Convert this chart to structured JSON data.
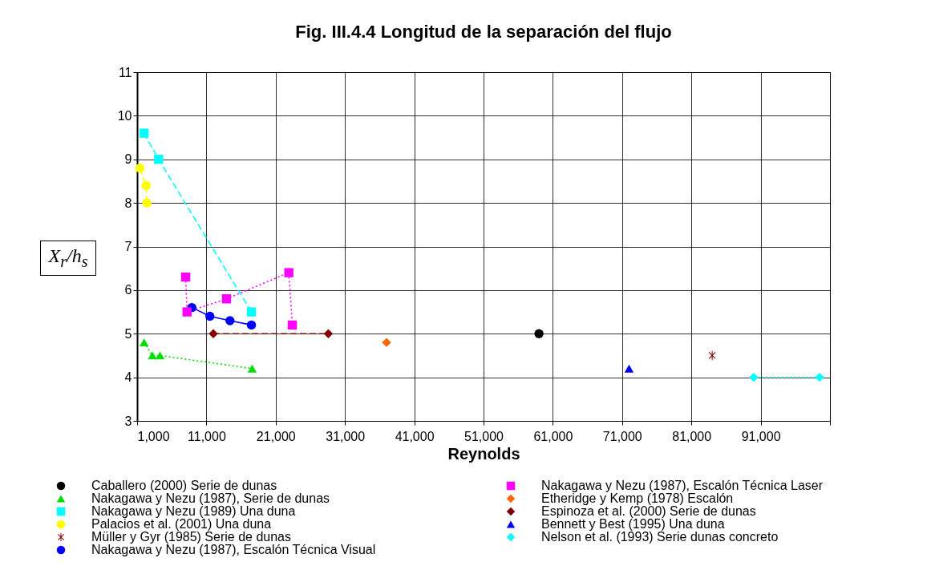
{
  "chart_data": {
    "type": "line",
    "title": "Fig. III.4.4 Longitud de la separación del flujo",
    "xlabel": "Reynolds",
    "ylabel": "X$_{r}$/h$_{s}$",
    "xlim": [
      1000,
      101000
    ],
    "xticks": [
      {
        "value": 1000,
        "label": "1,000"
      },
      {
        "value": 11000,
        "label": "11,000"
      },
      {
        "value": 21000,
        "label": "21,000"
      },
      {
        "value": 31000,
        "label": "31,000"
      },
      {
        "value": 41000,
        "label": "41,000"
      },
      {
        "value": 51000,
        "label": "51,000"
      },
      {
        "value": 61000,
        "label": "61,000"
      },
      {
        "value": 71000,
        "label": "71,000"
      },
      {
        "value": 81000,
        "label": "81,000"
      },
      {
        "value": 91000,
        "label": "91,000"
      },
      {
        "value": 101000,
        "label": null
      }
    ],
    "ylim": [
      3,
      11
    ],
    "yticks": [
      3,
      4,
      5,
      6,
      7,
      8,
      9,
      10,
      11
    ],
    "grid": true,
    "legend": "bottom",
    "series": [
      {
        "name": "Caballero (2000) Serie de dunas",
        "type": "scatter",
        "marker": "circle",
        "color": "#000000",
        "x": [
          59000
        ],
        "values": [
          5.0
        ]
      },
      {
        "name": "Nakagawa y Nezu (1987), Serie de dunas",
        "line_style": "dotted",
        "marker": "triangle",
        "color": "#00dd00",
        "x": [
          2000,
          3200,
          4300,
          17600
        ],
        "values": [
          4.8,
          4.5,
          4.5,
          4.2
        ]
      },
      {
        "name": "Nakagawa y Nezu (1989) Una duna",
        "line_style": "dashed",
        "marker": "square",
        "color": "#00ffff",
        "x": [
          2000,
          4100,
          17500
        ],
        "values": [
          9.6,
          9.0,
          5.5
        ]
      },
      {
        "name": "Palacios et al. (2001) Una duna",
        "line_style": "dashed",
        "marker": "circle",
        "color": "#ffff00",
        "x": [
          1400,
          2300,
          2400
        ],
        "values": [
          8.8,
          8.4,
          8.0
        ]
      },
      {
        "name": "Müller y Gyr (1985) Serie de dunas",
        "type": "scatter",
        "marker": "cross",
        "color": "#800000",
        "x": [
          84000
        ],
        "values": [
          4.5
        ]
      },
      {
        "name": "Nakagawa y Nezu (1987), Escalón Técnica Visual",
        "line_style": "solid",
        "marker": "circle",
        "color": "#0000ff",
        "x": [
          8900,
          11500,
          14400,
          17500
        ],
        "values": [
          5.6,
          5.4,
          5.3,
          5.2
        ]
      },
      {
        "name": "Nakagawa y Nezu (1987), Escalón Técnica Laser",
        "line_style": "dotted",
        "marker": "square",
        "color": "#ff00ff",
        "x": [
          8000,
          8200,
          13900,
          22900,
          23400
        ],
        "values": [
          6.3,
          5.5,
          5.8,
          6.4,
          5.2
        ]
      },
      {
        "name": "Etheridge y Kemp (1978) Escalón",
        "type": "scatter",
        "marker": "diamond",
        "color": "#ff6600",
        "x": [
          37000
        ],
        "values": [
          4.8
        ]
      },
      {
        "name": "Espinoza et al. (2000) Serie de dunas",
        "line_style": "dashed",
        "marker": "diamond",
        "color": "#800000",
        "x": [
          12000,
          28600
        ],
        "values": [
          5.0,
          5.0
        ]
      },
      {
        "name": "Bennett y Best (1995) Una duna",
        "type": "scatter",
        "marker": "triangle",
        "color": "#0000ff",
        "x": [
          72000
        ],
        "values": [
          4.2
        ]
      },
      {
        "name": "Nelson et al. (1993) Serie dunas concreto",
        "line_style": "dotted",
        "marker": "diamond",
        "color": "#00ffff",
        "x": [
          90000,
          99500
        ],
        "values": [
          4.0,
          4.0
        ]
      }
    ]
  }
}
